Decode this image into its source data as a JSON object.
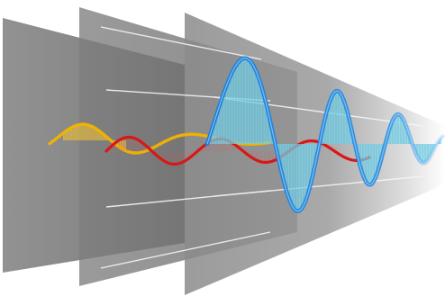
{
  "illustration": {
    "panel_count": 3,
    "colors": {
      "background": "#ffffff",
      "panel_dark": "#6a6a6a",
      "panel_mid": "#8c8c8c",
      "panel_light": "#b8b8b8",
      "guide_line": "#f2f2f2",
      "wave_blue_stroke": "#1f7fd8",
      "wave_blue_fill": "#7fd4e8",
      "wave_red": "#d81818",
      "wave_yellow": "#f2b400",
      "wave_yellow_fill": "#f6c840"
    }
  }
}
